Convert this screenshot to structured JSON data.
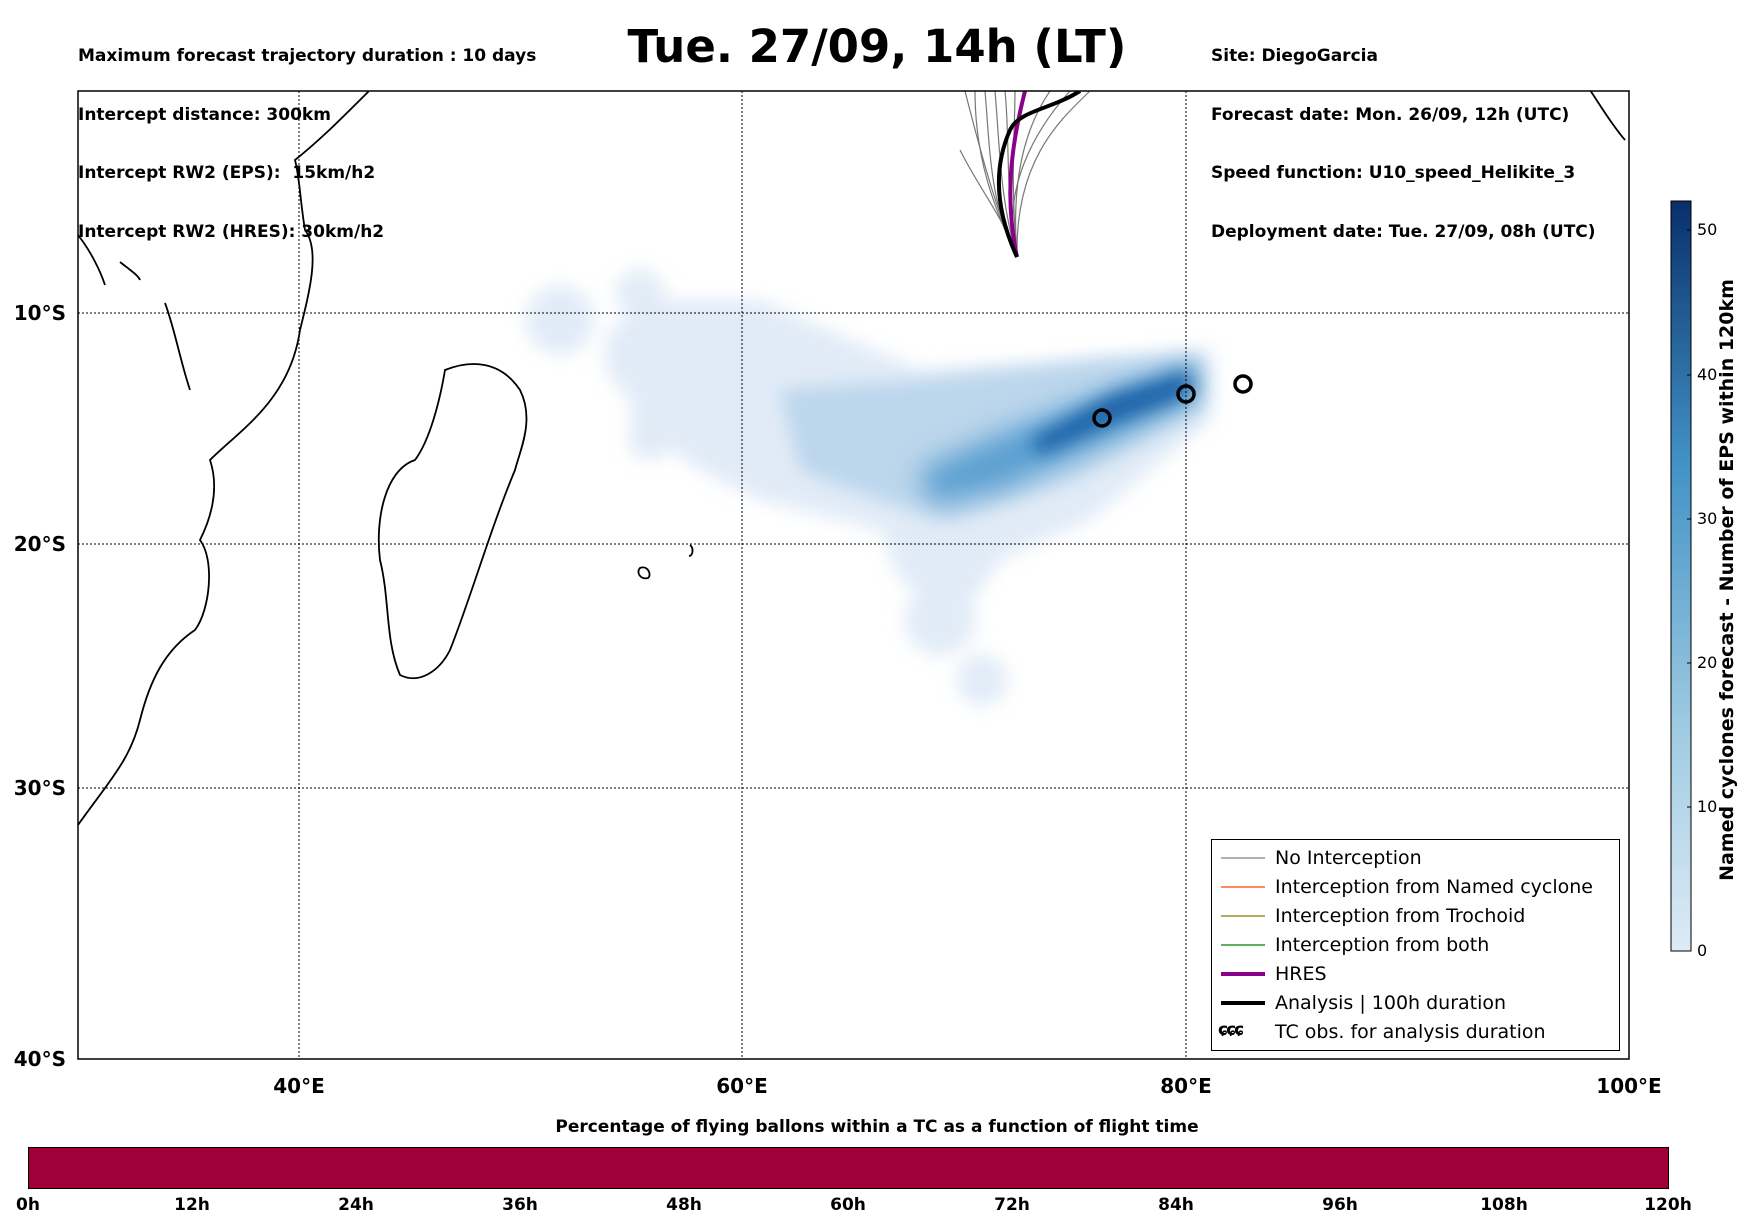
{
  "header": {
    "left_lines": [
      "Maximum forecast trajectory duration : 10 days",
      "Intercept distance: 300km",
      "Intercept RW2 (EPS):  15km/h2",
      "Intercept RW2 (HRES): 30km/h2"
    ],
    "title": "Tue. 27/09, 14h (LT)",
    "right_lines": [
      "Site: DiegoGarcia",
      "Forecast date: Mon. 26/09, 12h (UTC)",
      "Speed function: U10_speed_Helikite_3",
      "Deployment date: Tue. 27/09, 08h (UTC)"
    ]
  },
  "map": {
    "extent": {
      "lon_min": 30,
      "lon_max": 100,
      "lat_min": -40,
      "lat_max": 1
    },
    "lat_ticks": [
      "10°S",
      "20°S",
      "30°S",
      "40°S"
    ],
    "lon_ticks": [
      "40°E",
      "60°E",
      "80°E",
      "100°E"
    ],
    "gridlines": "dotted",
    "colors": {
      "density": "#2171b5",
      "hres": "#8b008b",
      "analysis": "#000000",
      "eps": "#777777"
    }
  },
  "legend": {
    "items": [
      {
        "label": "No Interception",
        "color": "#808080",
        "width": 1
      },
      {
        "label": "Interception from Named cyclone",
        "color": "#ff4500",
        "width": 1
      },
      {
        "label": "Interception from Trochoid",
        "color": "#808000",
        "width": 1
      },
      {
        "label": "Interception from both",
        "color": "#008000",
        "width": 1
      },
      {
        "label": "HRES",
        "color": "#8b008b",
        "width": 4
      },
      {
        "label": "Analysis | 100h duration",
        "color": "#000000",
        "width": 4
      }
    ],
    "symbol_item": {
      "symbol": "ɕɕɕ",
      "label": "TC obs. for analysis duration"
    }
  },
  "colorbar": {
    "label": "Named cyclones forecast - Number of EPS within 120km",
    "ticks": [
      "0",
      "10",
      "20",
      "30",
      "40",
      "50"
    ],
    "colors": [
      "#deebf7",
      "#9ecae1",
      "#4292c6",
      "#08306b"
    ]
  },
  "flight_time_bar": {
    "title": "Percentage of flying ballons within a TC as a function of flight time",
    "color": "#a0003a",
    "ticks": [
      "0h",
      "12h",
      "24h",
      "36h",
      "48h",
      "60h",
      "72h",
      "84h",
      "96h",
      "108h",
      "120h"
    ]
  }
}
